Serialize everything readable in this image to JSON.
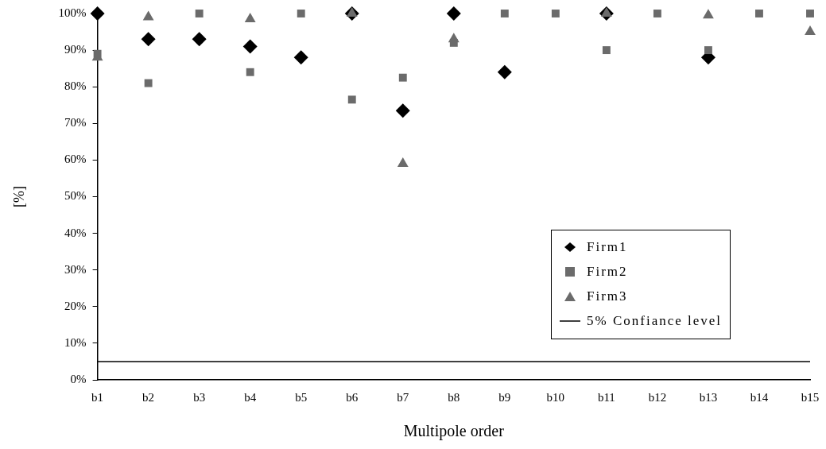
{
  "chart_data": {
    "type": "scatter",
    "xlabel": "Multipole order",
    "ylabel": "[%]",
    "categories": [
      "b1",
      "b2",
      "b3",
      "b4",
      "b5",
      "b6",
      "b7",
      "b8",
      "b9",
      "b10",
      "b11",
      "b12",
      "b13",
      "b14",
      "b15"
    ],
    "series": [
      {
        "name": "Firm1",
        "color": "#000000",
        "marker": "diamond",
        "values": [
          100,
          93,
          93,
          91,
          88,
          100,
          73.5,
          100,
          84,
          null,
          100,
          null,
          88,
          null,
          null
        ]
      },
      {
        "name": "Firm2",
        "color": "#6b6b6b",
        "marker": "square",
        "values": [
          89,
          81,
          100,
          84,
          100,
          76.5,
          82.5,
          92,
          100,
          100,
          90,
          100,
          90,
          100,
          100
        ]
      },
      {
        "name": "Firm3",
        "color": "#6b6b6b",
        "marker": "triangle",
        "values": [
          88,
          99,
          null,
          98.5,
          null,
          100,
          59,
          93,
          null,
          null,
          100,
          null,
          99.5,
          null,
          95
        ]
      }
    ],
    "ref_lines": [
      {
        "axis": "y",
        "value": 5,
        "label": "5% Confiance level",
        "color": "#000000",
        "line_style": "solid"
      }
    ],
    "ylim": [
      0,
      100
    ],
    "yticks": [
      {
        "value": 0,
        "label": "0%"
      },
      {
        "value": 10,
        "label": "10%"
      },
      {
        "value": 20,
        "label": "20%"
      },
      {
        "value": 30,
        "label": "30%"
      },
      {
        "value": 40,
        "label": "40%"
      },
      {
        "value": 50,
        "label": "50%"
      },
      {
        "value": 60,
        "label": "60%"
      },
      {
        "value": 70,
        "label": "70%"
      },
      {
        "value": 80,
        "label": "80%"
      },
      {
        "value": 90,
        "label": "90%"
      },
      {
        "value": 100,
        "label": "100%"
      }
    ],
    "grid": false,
    "legend": "center right"
  }
}
